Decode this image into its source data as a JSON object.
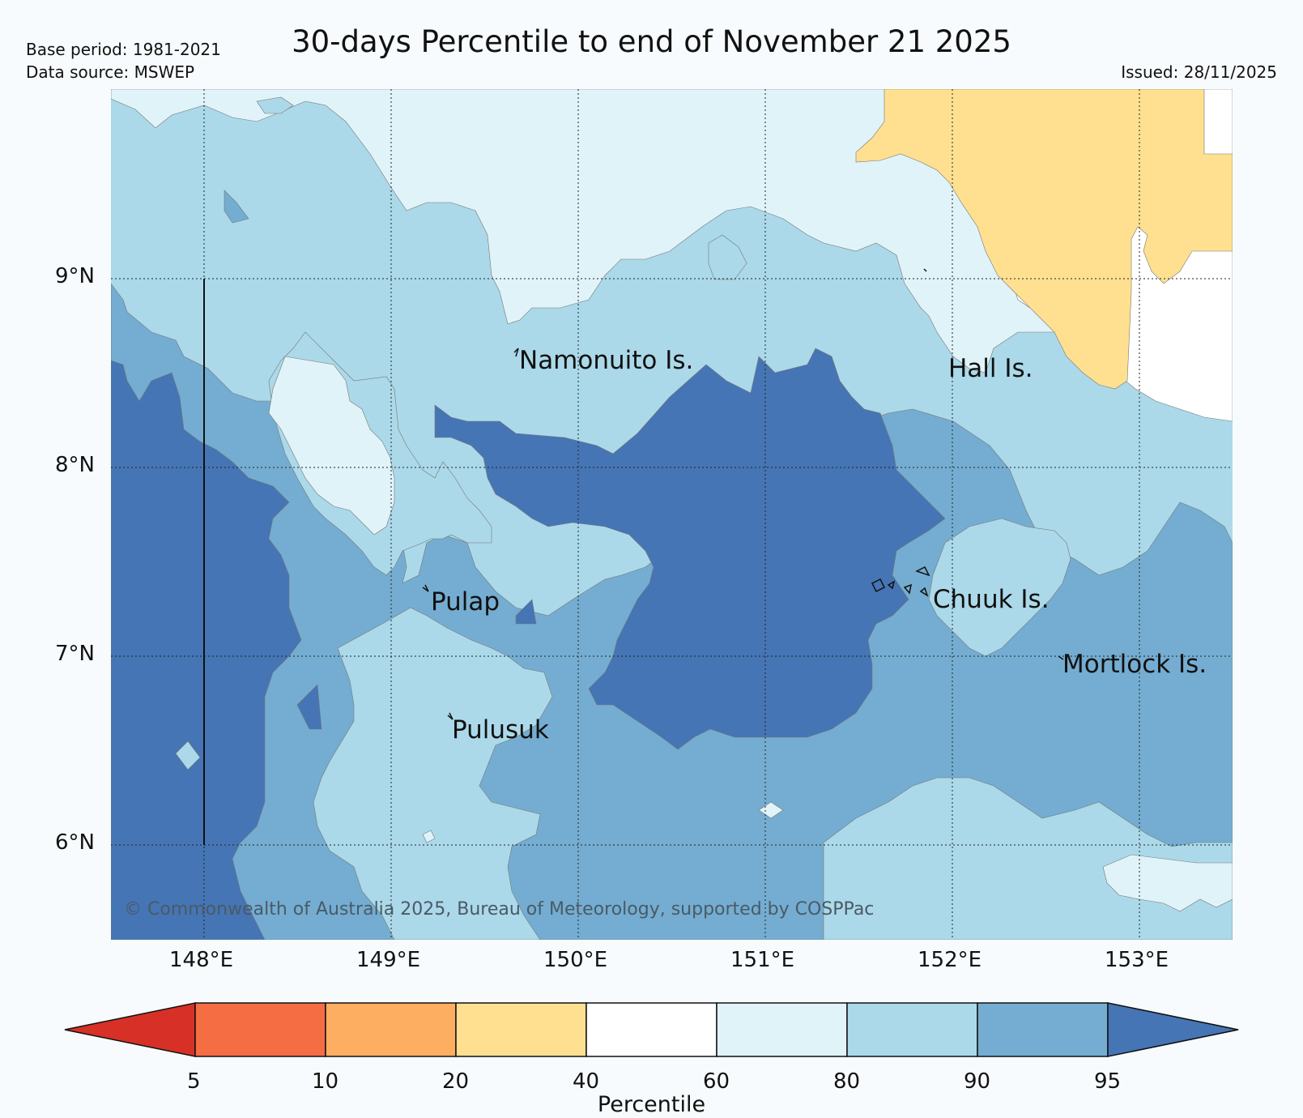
{
  "header": {
    "title": "30-days Percentile to end of November 21 2025",
    "base_period": "Base period: 1981-2021",
    "data_source": "Data source: MSWEP",
    "issued": "Issued: 28/11/2025"
  },
  "map": {
    "lat_labels": [
      "9°N",
      "8°N",
      "7°N",
      "6°N"
    ],
    "lon_labels": [
      "148°E",
      "149°E",
      "150°E",
      "151°E",
      "152°E",
      "153°E"
    ],
    "places": [
      {
        "name": "Namonuito Is."
      },
      {
        "name": "Hall Is."
      },
      {
        "name": "Pulap"
      },
      {
        "name": "Chuuk Is."
      },
      {
        "name": "Mortlock Is."
      },
      {
        "name": "Pulusuk"
      }
    ],
    "copyright": "© Commonwealth of Australia 2025, Bureau of Meteorology, supported by COSPPac"
  },
  "colorbar": {
    "title": "Percentile",
    "ticks": [
      "5",
      "10",
      "20",
      "40",
      "60",
      "80",
      "90",
      "95"
    ],
    "bins": [
      {
        "range": "<5",
        "color": "#d73027"
      },
      {
        "range": "5-10",
        "color": "#f46d43"
      },
      {
        "range": "10-20",
        "color": "#fdae61"
      },
      {
        "range": "20-40",
        "color": "#fee090"
      },
      {
        "range": "40-60",
        "color": "#ffffff"
      },
      {
        "range": "60-80",
        "color": "#e0f3f8"
      },
      {
        "range": "80-90",
        "color": "#abd9e9"
      },
      {
        "range": "90-95",
        "color": "#74add1"
      },
      {
        "range": ">95",
        "color": "#4575b4"
      }
    ]
  }
}
